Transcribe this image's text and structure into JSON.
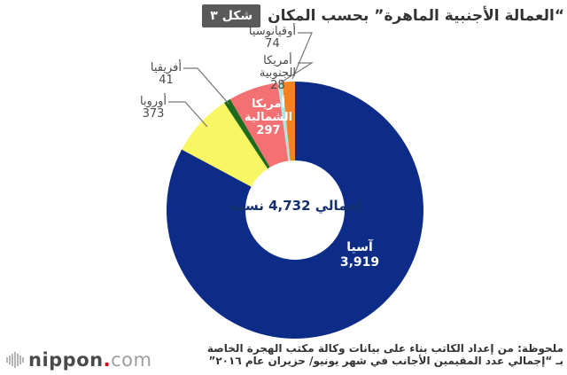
{
  "title": {
    "figure_label": "شكل ٣",
    "text": "“العمالة الأجنبية الماهرة” بحسب المكان"
  },
  "chart_data": {
    "type": "pie",
    "subtype": "donut",
    "title": "“العمالة الأجنبية الماهرة” بحسب المكان",
    "total": 4732,
    "center_text": "إجمالي 4,732 نسمة",
    "start_angle": "top",
    "direction": "clockwise",
    "series": [
      {
        "id": "asia",
        "name": "آسيا",
        "value": 3919,
        "display_value": "3,919",
        "color": "#0d2c88"
      },
      {
        "id": "europe",
        "name": "أوروبا",
        "value": 373,
        "display_value": "373",
        "color": "#f8f763"
      },
      {
        "id": "africa",
        "name": "أفريقيا",
        "value": 41,
        "display_value": "41",
        "color": "#1d6b1d"
      },
      {
        "id": "namerica",
        "name": "أمريكا الشمالية",
        "value": 297,
        "display_value": "297",
        "color": "#f47173"
      },
      {
        "id": "samerica",
        "name": "أمريكا الجنوبية",
        "value": 28,
        "display_value": "28",
        "color": "#aee6df"
      },
      {
        "id": "oceania",
        "name": "أوقيانوسيا",
        "value": 74,
        "display_value": "74",
        "color": "#f58220"
      }
    ],
    "legend": "none",
    "grid": false
  },
  "labels": {
    "oceania": {
      "name": "أوقيانوسيا",
      "value": "74"
    },
    "samerica": {
      "line1": "أمريكا",
      "line2": "الجنوبية",
      "value": "28"
    },
    "africa": {
      "name": "أفريقيا",
      "value": "41"
    },
    "europe": {
      "name": "أوروبا",
      "value": "373"
    },
    "namerica": {
      "line1": "أمريكا",
      "line2": "الشمالية",
      "value": "297"
    },
    "asia": {
      "name": "آسيا",
      "value": "3,919"
    }
  },
  "center": {
    "text": "إجمالي 4,732 نسمة"
  },
  "note": {
    "line1": "ملحوظة: من إعداد الكاتب بناء على بيانات وكالة مكتب الهجرة الخاصة",
    "line2": "بـ “إجمالي عدد المقيمين الأجانب في شهر يونيو/ حزيران عام ٢٠١٦”"
  },
  "logo": {
    "icon": "equalizer-bars-icon",
    "name": "nippon",
    "dot": ".",
    "tld": "com",
    "dot_color": "#e60012"
  }
}
